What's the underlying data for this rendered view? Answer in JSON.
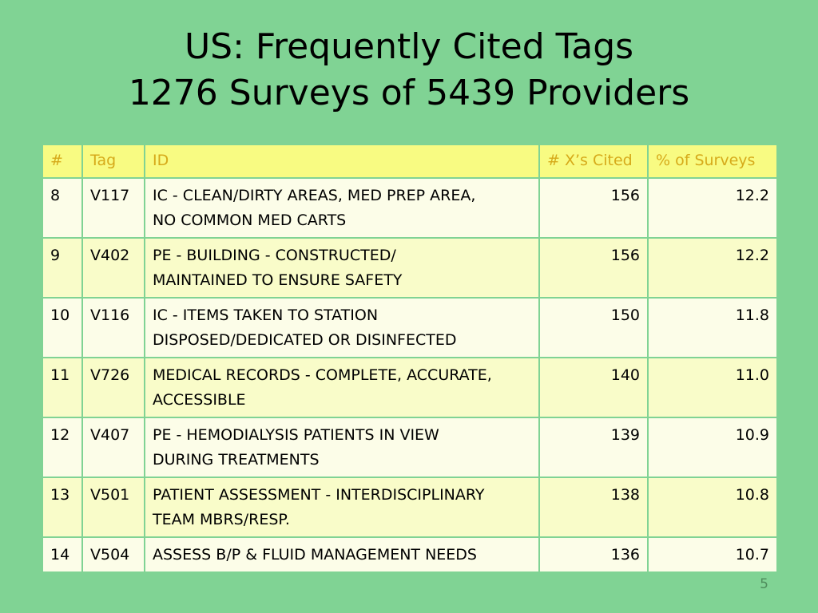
{
  "title": {
    "line1": "US: Frequently Cited Tags",
    "line2": "1276 Surveys of 5439 Providers"
  },
  "table": {
    "headers": [
      "#",
      "Tag",
      "ID",
      "# X’s Cited",
      "% of Surveys"
    ],
    "rows": [
      {
        "num": "8",
        "tag": "V117",
        "id_line1": "IC - CLEAN/DIRTY AREAS, MED PREP AREA,",
        "id_line2": "NO COMMON MED CARTS",
        "cited": "156",
        "pct": "12.2"
      },
      {
        "num": "9",
        "tag": "V402",
        "id_line1": "PE - BUILDING - CONSTRUCTED/",
        "id_line2": "MAINTAINED TO ENSURE SAFETY",
        "cited": "156",
        "pct": "12.2"
      },
      {
        "num": "10",
        "tag": "V116",
        "id_line1": "IC - ITEMS TAKEN TO STATION",
        "id_line2": "DISPOSED/DEDICATED OR DISINFECTED",
        "cited": "150",
        "pct": "11.8"
      },
      {
        "num": "11",
        "tag": "V726",
        "id_line1": "MEDICAL RECORDS - COMPLETE, ACCURATE,",
        "id_line2": "ACCESSIBLE",
        "cited": "140",
        "pct": "11.0"
      },
      {
        "num": "12",
        "tag": "V407",
        "id_line1": "PE - HEMODIALYSIS PATIENTS IN VIEW",
        "id_line2": "DURING TREATMENTS",
        "cited": "139",
        "pct": "10.9"
      },
      {
        "num": "13",
        "tag": "V501",
        "id_line1": "PATIENT ASSESSMENT - INTERDISCIPLINARY",
        "id_line2": "TEAM MBRS/RESP.",
        "cited": "138",
        "pct": "10.8"
      },
      {
        "num": "14",
        "tag": "V504",
        "id_line1": "ASSESS B/P & FLUID MANAGEMENT NEEDS",
        "id_line2": "",
        "cited": "136",
        "pct": "10.7"
      }
    ]
  },
  "page_number": "5",
  "colors": {
    "background": "#80d394",
    "header_fill": "#f8fb82",
    "header_text": "#d6aa1a",
    "row_light": "#fcfde8",
    "row_dark": "#f9fcc9"
  }
}
